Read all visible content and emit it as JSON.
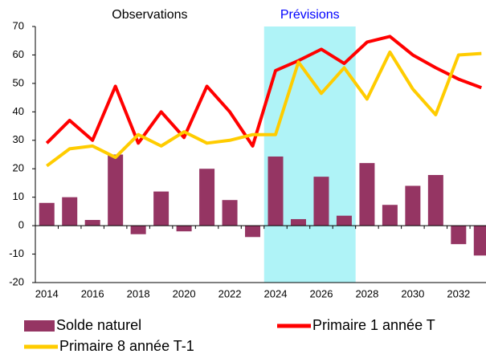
{
  "chart_data": {
    "type": "bar-line",
    "annotations": [
      {
        "text": "Observations",
        "x": 2018.5,
        "color": "#000000"
      },
      {
        "text": "Prévisions",
        "x": 2025.5,
        "color": "#0000ff"
      }
    ],
    "shaded_xrange": [
      2023.5,
      2027.5
    ],
    "shade_color": "#aff3f7",
    "x": [
      2014,
      2015,
      2016,
      2017,
      2018,
      2019,
      2020,
      2021,
      2022,
      2023,
      2024,
      2025,
      2026,
      2027,
      2028,
      2029,
      2030,
      2031,
      2032,
      2033
    ],
    "xlim": [
      2013.5,
      2033.2
    ],
    "xticks": [
      2014,
      2016,
      2018,
      2020,
      2022,
      2024,
      2026,
      2028,
      2030,
      2032
    ],
    "ylim": [
      -20,
      70
    ],
    "yticks": [
      -20,
      -10,
      0,
      10,
      20,
      30,
      40,
      50,
      60,
      70
    ],
    "series": [
      {
        "name": "Solde naturel",
        "type": "bar",
        "color": "#953563",
        "values": [
          8,
          10,
          2,
          25,
          -3,
          12,
          -2,
          20,
          9,
          -4,
          24.3,
          2.3,
          17.2,
          3.5,
          22,
          7.3,
          14,
          17.8,
          -6.5,
          -10.5
        ]
      },
      {
        "name": "Primaire 1 année T",
        "type": "line",
        "color": "#ff0000",
        "values": [
          29,
          37,
          30,
          49,
          29,
          40,
          31,
          49,
          40,
          28,
          54.5,
          58,
          62,
          57,
          64.5,
          66.5,
          60,
          55.5,
          51.5,
          48.5
        ]
      },
      {
        "name": "Primaire 8 année T-1",
        "type": "line",
        "color": "#ffcc00",
        "values": [
          21,
          27,
          28,
          24,
          32,
          28,
          33,
          29,
          30,
          32,
          32,
          57.5,
          46.5,
          55.5,
          44.5,
          61,
          48,
          39,
          60,
          60.5
        ]
      }
    ]
  }
}
